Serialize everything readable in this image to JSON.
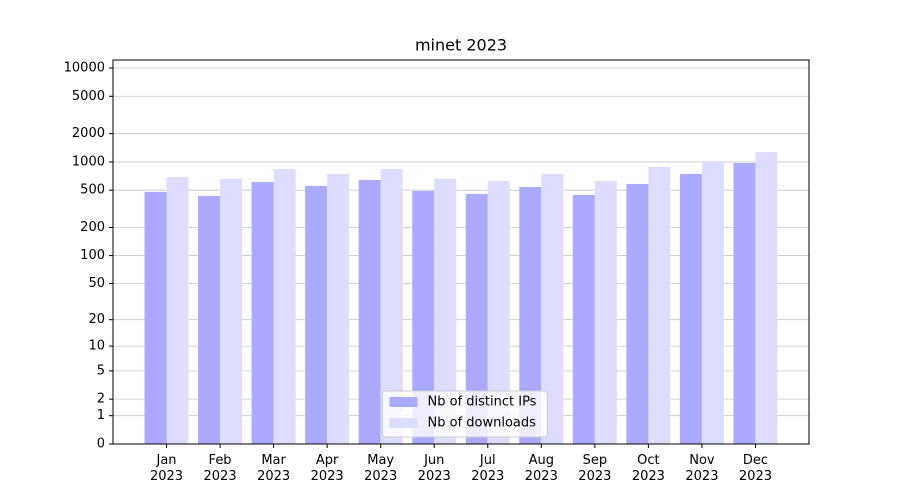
{
  "chart_data": {
    "type": "bar",
    "title": "minet 2023",
    "categories": [
      "Jan\n2023",
      "Feb\n2023",
      "Mar\n2023",
      "Apr\n2023",
      "May\n2023",
      "Jun\n2023",
      "Jul\n2023",
      "Aug\n2023",
      "Sep\n2023",
      "Oct\n2023",
      "Nov\n2023",
      "Dec\n2023"
    ],
    "series": [
      {
        "name": "Nb of distinct IPs",
        "color": "#aaaaff",
        "values": [
          480,
          434,
          612,
          555,
          643,
          490,
          456,
          541,
          445,
          583,
          745,
          975
        ]
      },
      {
        "name": "Nb of downloads",
        "color": "#ddddff",
        "values": [
          692,
          659,
          842,
          745,
          842,
          659,
          627,
          745,
          627,
          884,
          1000,
          1277
        ]
      }
    ],
    "scale": "log1p",
    "ylim": [
      0,
      12160
    ],
    "yticks": [
      0,
      1,
      2,
      5,
      10,
      20,
      50,
      100,
      200,
      500,
      1000,
      2000,
      5000,
      10000
    ],
    "grid": true,
    "legend": "lower center"
  }
}
